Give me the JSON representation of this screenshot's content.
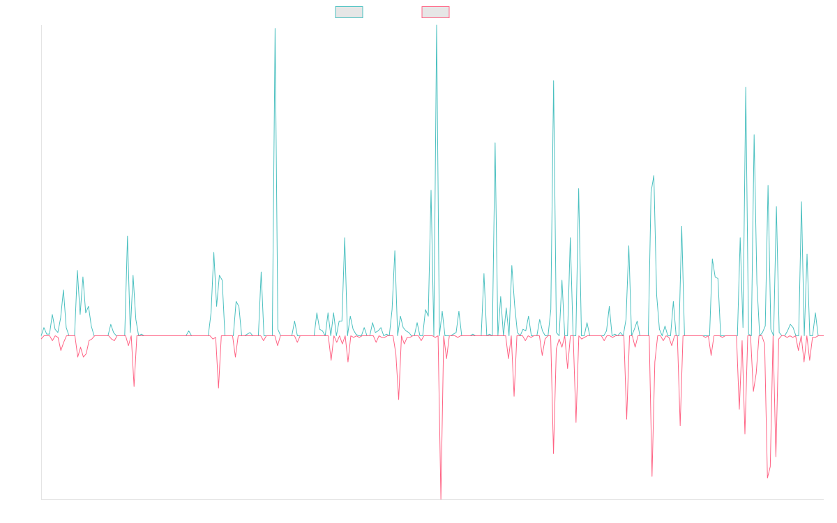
{
  "chart_data": {
    "type": "line",
    "title": "",
    "xlabel": "",
    "ylabel": "",
    "grid": false,
    "legend_position": "top-center",
    "ylim": [
      -1.0,
      1.9
    ],
    "series": [
      {
        "name": "",
        "color": "#4bc0c0",
        "values": [
          0.0,
          0.05,
          0.01,
          0.01,
          0.13,
          0.04,
          0.02,
          0.11,
          0.28,
          0.05,
          0.0,
          0.0,
          0.0,
          0.4,
          0.13,
          0.36,
          0.14,
          0.18,
          0.06,
          0.0,
          0.0,
          0.0,
          0.0,
          0.0,
          0.0,
          0.07,
          0.02,
          0.0,
          0.0,
          0.0,
          0.0,
          0.61,
          0.02,
          0.37,
          0.1,
          0.0,
          0.01,
          0.0,
          0.0,
          0.0,
          0.0,
          0.0,
          0.0,
          0.0,
          0.0,
          0.0,
          0.0,
          0.0,
          0.0,
          0.0,
          0.0,
          0.0,
          0.0,
          0.03,
          0.0,
          0.0,
          0.0,
          0.0,
          0.0,
          0.0,
          0.0,
          0.14,
          0.51,
          0.18,
          0.37,
          0.34,
          0.0,
          0.0,
          0.0,
          0.0,
          0.21,
          0.18,
          0.0,
          0.0,
          0.01,
          0.02,
          0.0,
          0.0,
          0.0,
          0.39,
          0.0,
          0.0,
          0.0,
          0.0,
          1.88,
          0.04,
          0.0,
          0.0,
          0.0,
          0.0,
          0.0,
          0.09,
          0.0,
          0.0,
          0.0,
          0.0,
          0.0,
          0.0,
          0.0,
          0.14,
          0.04,
          0.03,
          0.0,
          0.14,
          0.0,
          0.14,
          0.0,
          0.09,
          0.09,
          0.6,
          0.0,
          0.12,
          0.04,
          0.01,
          0.0,
          0.0,
          0.05,
          0.0,
          0.0,
          0.08,
          0.02,
          0.03,
          0.05,
          0.0,
          0.01,
          0.0,
          0.16,
          0.52,
          0.0,
          0.12,
          0.05,
          0.03,
          0.02,
          0.0,
          0.0,
          0.08,
          0.0,
          0.0,
          0.16,
          0.12,
          0.89,
          0.0,
          1.9,
          0.0,
          0.15,
          0.0,
          0.0,
          0.0,
          0.01,
          0.02,
          0.15,
          0.0,
          0.0,
          0.0,
          0.0,
          0.01,
          0.0,
          0.0,
          0.0,
          0.38,
          0.0,
          0.01,
          0.0,
          1.18,
          0.0,
          0.24,
          0.0,
          0.17,
          0.0,
          0.43,
          0.19,
          0.02,
          0.0,
          0.04,
          0.03,
          0.12,
          0.0,
          0.0,
          0.0,
          0.1,
          0.03,
          0.0,
          0.0,
          0.16,
          1.56,
          0.02,
          0.0,
          0.34,
          0.0,
          0.0,
          0.6,
          0.0,
          0.0,
          0.9,
          0.0,
          0.0,
          0.08,
          0.0,
          0.0,
          0.0,
          0.0,
          0.0,
          0.0,
          0.03,
          0.18,
          0.0,
          0.01,
          0.0,
          0.02,
          0.0,
          0.1,
          0.55,
          0.0,
          0.04,
          0.09,
          0.0,
          0.0,
          0.0,
          0.0,
          0.88,
          0.98,
          0.25,
          0.04,
          0.0,
          0.06,
          0.0,
          0.0,
          0.21,
          0.0,
          0.0,
          0.67,
          0.0,
          0.0,
          0.0,
          0.0,
          0.0,
          0.0,
          0.0,
          0.0,
          0.0,
          0.0,
          0.47,
          0.36,
          0.35,
          0.0,
          0.0,
          0.0,
          0.0,
          0.0,
          0.0,
          0.0,
          0.6,
          0.05,
          1.52,
          0.01,
          0.0,
          1.23,
          0.32,
          0.0,
          0.02,
          0.06,
          0.92,
          0.04,
          0.0,
          0.79,
          0.02,
          0.0,
          0.0,
          0.03,
          0.07,
          0.05,
          0.0,
          0.0,
          0.82,
          0.0,
          0.5,
          0.0,
          0.0,
          0.14,
          0.0,
          0.0,
          0.0
        ]
      },
      {
        "name": "",
        "color": "#ff6384",
        "values": [
          -0.02,
          0.0,
          0.0,
          0.0,
          -0.03,
          0.0,
          -0.01,
          -0.09,
          -0.04,
          0.0,
          0.0,
          0.0,
          0.0,
          -0.13,
          -0.07,
          -0.13,
          -0.11,
          -0.03,
          -0.02,
          0.0,
          0.0,
          0.0,
          0.0,
          0.0,
          0.0,
          -0.02,
          -0.03,
          0.0,
          0.0,
          0.0,
          0.0,
          -0.06,
          0.0,
          -0.31,
          0.0,
          0.0,
          0.0,
          0.0,
          0.0,
          0.0,
          0.0,
          0.0,
          0.0,
          0.0,
          0.0,
          0.0,
          0.0,
          0.0,
          0.0,
          0.0,
          0.0,
          0.0,
          0.0,
          0.0,
          0.0,
          0.0,
          0.0,
          0.0,
          0.0,
          0.0,
          0.0,
          -0.02,
          -0.01,
          -0.32,
          0.0,
          0.0,
          0.0,
          0.0,
          0.0,
          -0.13,
          0.0,
          0.0,
          0.0,
          0.0,
          0.0,
          0.0,
          0.0,
          0.0,
          0.0,
          -0.03,
          0.0,
          0.0,
          0.0,
          0.0,
          -0.06,
          0.0,
          0.0,
          0.0,
          0.0,
          0.0,
          0.0,
          -0.04,
          0.0,
          0.0,
          0.0,
          0.0,
          0.0,
          0.0,
          0.0,
          0.0,
          0.0,
          0.0,
          0.0,
          -0.15,
          0.0,
          -0.04,
          0.0,
          -0.05,
          0.0,
          -0.16,
          0.0,
          -0.01,
          0.0,
          -0.01,
          0.0,
          0.0,
          0.0,
          0.0,
          0.0,
          -0.04,
          0.0,
          -0.01,
          -0.01,
          0.0,
          0.0,
          0.0,
          -0.11,
          -0.39,
          0.0,
          -0.05,
          -0.01,
          -0.01,
          0.0,
          0.0,
          0.0,
          -0.03,
          0.0,
          0.0,
          0.0,
          0.0,
          -0.01,
          0.0,
          -1.0,
          0.0,
          -0.14,
          0.0,
          0.0,
          0.0,
          -0.01,
          0.0,
          0.0,
          0.0,
          0.0,
          0.0,
          0.0,
          0.0,
          0.0,
          0.0,
          0.0,
          0.0,
          0.0,
          0.0,
          0.0,
          0.0,
          0.0,
          0.0,
          -0.14,
          0.0,
          -0.37,
          0.0,
          0.0,
          0.0,
          -0.03,
          0.0,
          -0.01,
          0.0,
          0.0,
          0.0,
          -0.12,
          -0.02,
          0.0,
          0.0,
          -0.72,
          -0.08,
          -0.02,
          -0.07,
          0.0,
          -0.2,
          0.0,
          0.0,
          -0.53,
          0.0,
          -0.02,
          -0.01,
          0.0,
          0.0,
          0.0,
          0.0,
          0.0,
          0.0,
          -0.03,
          0.0,
          0.0,
          -0.01,
          0.0,
          0.0,
          0.0,
          0.0,
          -0.51,
          0.0,
          0.0,
          -0.07,
          0.0,
          0.0,
          0.0,
          0.0,
          0.0,
          -0.86,
          -0.16,
          0.0,
          0.0,
          -0.03,
          0.0,
          -0.01,
          -0.06,
          0.0,
          0.0,
          -0.55,
          0.0,
          0.0,
          0.0,
          0.0,
          0.0,
          0.0,
          0.0,
          0.0,
          -0.01,
          0.0,
          -0.12,
          0.0,
          0.0,
          0.0,
          -0.01,
          0.0,
          0.0,
          0.0,
          0.0,
          0.0,
          -0.45,
          -0.03,
          -0.6,
          0.0,
          0.0,
          -0.34,
          -0.23,
          0.0,
          0.0,
          -0.05,
          -0.87,
          -0.8,
          0.0,
          -0.74,
          -0.02,
          0.0,
          0.0,
          -0.01,
          0.0,
          -0.01,
          0.0,
          -0.09,
          0.0,
          -0.16,
          0.0,
          -0.15,
          -0.01,
          -0.01,
          0.0,
          0.0,
          0.0
        ]
      }
    ]
  }
}
